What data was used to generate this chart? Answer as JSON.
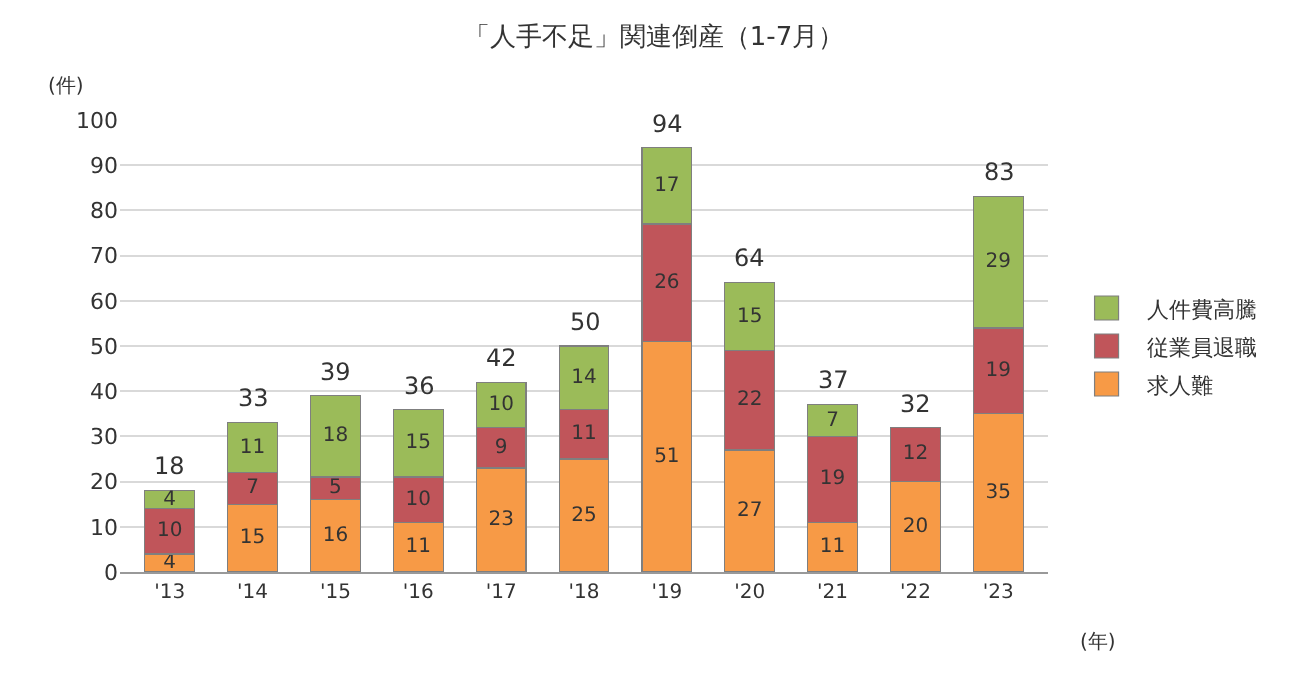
{
  "chart_data": {
    "type": "bar",
    "title": "「人手不足」関連倒産（1-7月）",
    "ylabel": "(件)",
    "xlabel": "(年)",
    "categories": [
      "'13",
      "'14",
      "'15",
      "'16",
      "'17",
      "'18",
      "'19",
      "'20",
      "'21",
      "'22",
      "'23"
    ],
    "stacked": true,
    "series": [
      {
        "name": "求人難",
        "color": "#f79a46",
        "values": [
          4,
          15,
          16,
          11,
          23,
          25,
          51,
          27,
          11,
          20,
          35
        ]
      },
      {
        "name": "従業員退職",
        "color": "#c0555a",
        "values": [
          10,
          7,
          5,
          10,
          9,
          11,
          26,
          22,
          19,
          12,
          19
        ]
      },
      {
        "name": "人件費高騰",
        "color": "#9bbb59",
        "values": [
          4,
          11,
          18,
          15,
          10,
          14,
          17,
          15,
          7,
          null,
          29
        ]
      }
    ],
    "totals": [
      "18",
      "33",
      "39",
      "36",
      "42",
      "50",
      "94",
      "64",
      "37",
      "32",
      "83"
    ],
    "data_labels": true,
    "ylim": [
      0,
      100
    ],
    "yticks": [
      0,
      10,
      20,
      30,
      40,
      50,
      60,
      70,
      80,
      90,
      100
    ],
    "grid": "y",
    "legend": "right"
  }
}
